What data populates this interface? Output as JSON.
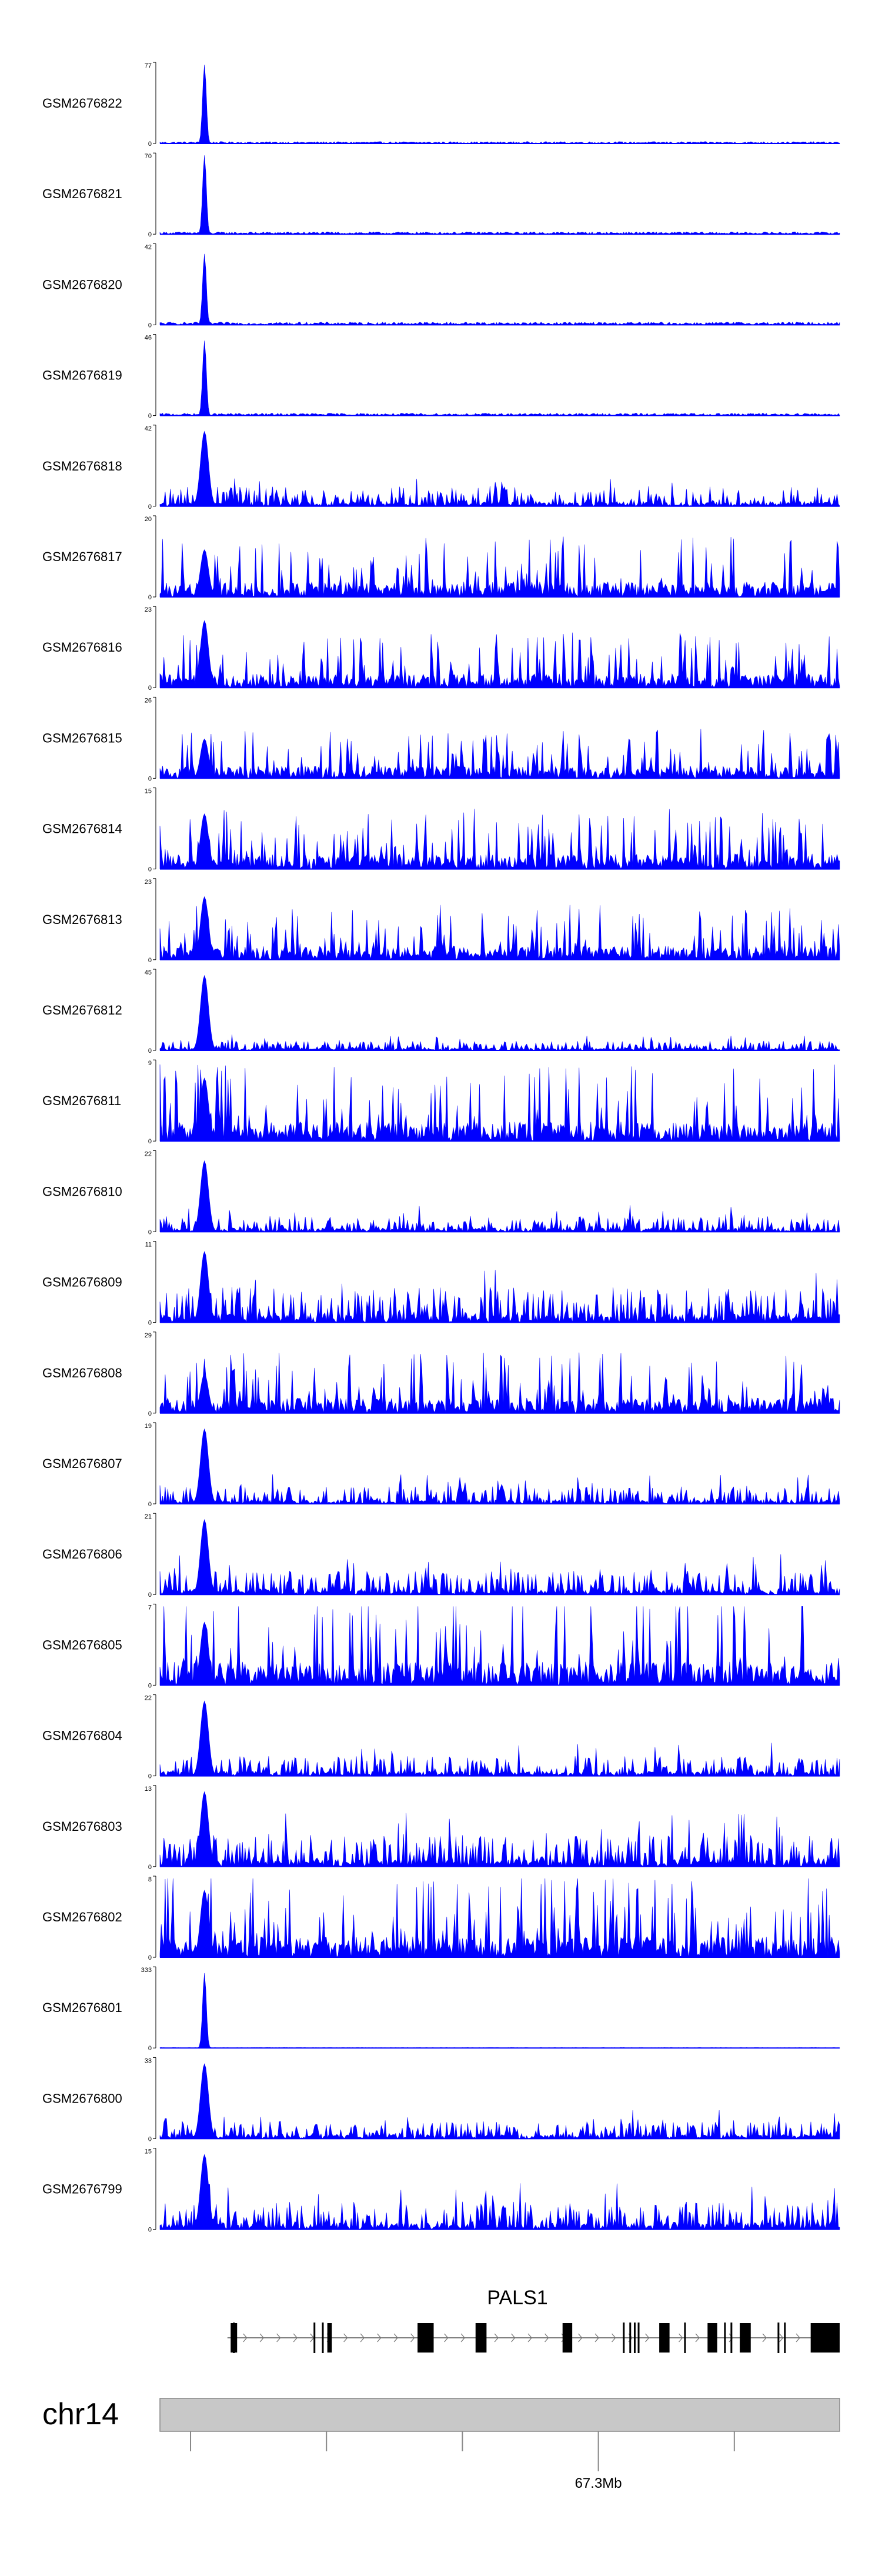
{
  "chart_data": {
    "type": "area",
    "color": "#0000ff",
    "tracks": [
      {
        "name": "GSM2676822",
        "ymax": "77",
        "ymin": "0",
        "profile": "single",
        "peak": 1.0,
        "bg": 0.04
      },
      {
        "name": "GSM2676821",
        "ymax": "70",
        "ymin": "0",
        "profile": "single",
        "peak": 1.0,
        "bg": 0.05
      },
      {
        "name": "GSM2676820",
        "ymax": "42",
        "ymin": "0",
        "profile": "single",
        "peak": 0.9,
        "bg": 0.06
      },
      {
        "name": "GSM2676819",
        "ymax": "46",
        "ymin": "0",
        "profile": "single",
        "peak": 0.95,
        "bg": 0.05
      },
      {
        "name": "GSM2676818",
        "ymax": "42",
        "ymin": "0",
        "profile": "peaked",
        "peak": 0.95,
        "bg": 0.25
      },
      {
        "name": "GSM2676817",
        "ymax": "20",
        "ymin": "0",
        "profile": "broad",
        "peak": 0.6,
        "bg": 0.55
      },
      {
        "name": "GSM2676816",
        "ymax": "23",
        "ymin": "0",
        "profile": "broad",
        "peak": 0.85,
        "bg": 0.5
      },
      {
        "name": "GSM2676815",
        "ymax": "26",
        "ymin": "0",
        "profile": "broad",
        "peak": 0.5,
        "bg": 0.45
      },
      {
        "name": "GSM2676814",
        "ymax": "15",
        "ymin": "0",
        "profile": "broad",
        "peak": 0.7,
        "bg": 0.55
      },
      {
        "name": "GSM2676813",
        "ymax": "23",
        "ymin": "0",
        "profile": "broad",
        "peak": 0.8,
        "bg": 0.5
      },
      {
        "name": "GSM2676812",
        "ymax": "45",
        "ymin": "0",
        "profile": "peaked",
        "peak": 0.95,
        "bg": 0.12
      },
      {
        "name": "GSM2676811",
        "ymax": "9",
        "ymin": "0",
        "profile": "broad",
        "peak": 0.8,
        "bg": 0.7
      },
      {
        "name": "GSM2676810",
        "ymax": "22",
        "ymin": "0",
        "profile": "peaked",
        "peak": 0.9,
        "bg": 0.2
      },
      {
        "name": "GSM2676809",
        "ymax": "11",
        "ymin": "0",
        "profile": "peaked",
        "peak": 0.9,
        "bg": 0.45
      },
      {
        "name": "GSM2676808",
        "ymax": "29",
        "ymin": "0",
        "profile": "broad",
        "peak": 0.5,
        "bg": 0.55
      },
      {
        "name": "GSM2676807",
        "ymax": "19",
        "ymin": "0",
        "profile": "peaked",
        "peak": 0.95,
        "bg": 0.22
      },
      {
        "name": "GSM2676806",
        "ymax": "21",
        "ymin": "0",
        "profile": "peaked",
        "peak": 0.95,
        "bg": 0.3
      },
      {
        "name": "GSM2676805",
        "ymax": "7",
        "ymin": "0",
        "profile": "broad",
        "peak": 0.8,
        "bg": 0.85
      },
      {
        "name": "GSM2676804",
        "ymax": "22",
        "ymin": "0",
        "profile": "peaked",
        "peak": 0.95,
        "bg": 0.25
      },
      {
        "name": "GSM2676803",
        "ymax": "13",
        "ymin": "0",
        "profile": "peaked",
        "peak": 0.95,
        "bg": 0.4
      },
      {
        "name": "GSM2676802",
        "ymax": "8",
        "ymin": "0",
        "profile": "broad",
        "peak": 0.85,
        "bg": 0.75
      },
      {
        "name": "GSM2676801",
        "ymax": "333",
        "ymin": "0",
        "profile": "single",
        "peak": 0.95,
        "bg": 0.01
      },
      {
        "name": "GSM2676800",
        "ymax": "33",
        "ymin": "0",
        "profile": "peaked",
        "peak": 0.95,
        "bg": 0.22
      },
      {
        "name": "GSM2676799",
        "ymax": "15",
        "ymin": "0",
        "profile": "peaked",
        "peak": 0.95,
        "bg": 0.35
      }
    ],
    "gene": {
      "name": "PALS1",
      "strand": "+",
      "exons": [
        [
          0.055,
          0.065
        ],
        [
          0.205,
          0.212
        ],
        [
          0.345,
          0.37
        ],
        [
          0.435,
          0.452
        ],
        [
          0.57,
          0.585
        ],
        [
          0.72,
          0.736
        ],
        [
          0.795,
          0.81
        ],
        [
          0.845,
          0.862
        ],
        [
          0.955,
          1.0
        ]
      ],
      "thin_marks": [
        0.06,
        0.185,
        0.198,
        0.665,
        0.675,
        0.682,
        0.688,
        0.76,
        0.822,
        0.832,
        0.905,
        0.915
      ]
    },
    "chromosome": "chr14",
    "axis": {
      "ticks": [
        0.045,
        0.245,
        0.445,
        0.645,
        0.845
      ],
      "labeled_tick": 0.645,
      "position_label": "67.3Mb"
    }
  }
}
